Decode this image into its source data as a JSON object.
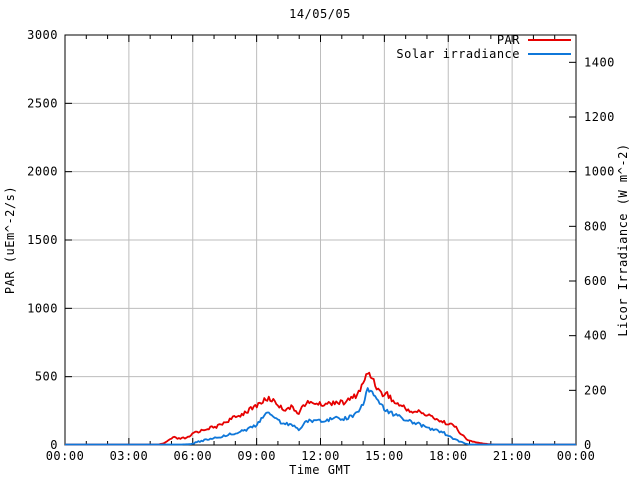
{
  "chart_data": {
    "type": "line",
    "title": "14/05/05",
    "xlabel": "Time GMT",
    "ylabel_left": "PAR (uEm^-2/s)",
    "ylabel_right": "Licor Irradiance (W m^-2)",
    "x_range_hours": [
      0,
      24
    ],
    "x_major_tick_step_hours": 3,
    "x_minor_tick_step_hours": 1,
    "x_tick_labels": [
      "00:00",
      "03:00",
      "06:00",
      "09:00",
      "12:00",
      "15:00",
      "18:00",
      "21:00",
      "00:00"
    ],
    "y_left": {
      "min": 0,
      "max": 3000,
      "tick_step": 500,
      "tick_labels": [
        "0",
        "500",
        "1000",
        "1500",
        "2000",
        "2500",
        "3000"
      ]
    },
    "y_right": {
      "min": 0,
      "max": 1500,
      "tick_step": 200,
      "tick_labels": [
        "0",
        "200",
        "400",
        "600",
        "800",
        "1000",
        "1200",
        "1400"
      ]
    },
    "grid": true,
    "colors": {
      "background": "#ffffff",
      "axis": "#000000",
      "grid": "#bdbdbd",
      "par": "#e60000",
      "solar": "#0f77d9"
    },
    "legend": {
      "position": "top-right-inside",
      "entries": [
        {
          "label": "PAR",
          "color": "#e60000"
        },
        {
          "label": "Solar irradiance",
          "color": "#0f77d9"
        }
      ]
    },
    "series": [
      {
        "name": "PAR",
        "axis": "left",
        "color": "#e60000",
        "units": "uEm^-2/s",
        "points": [
          [
            0,
            3
          ],
          [
            1,
            3
          ],
          [
            2,
            3
          ],
          [
            3,
            3
          ],
          [
            4,
            3
          ],
          [
            4.4,
            4
          ],
          [
            4.7,
            15
          ],
          [
            4.9,
            38
          ],
          [
            5.1,
            55
          ],
          [
            5.3,
            46
          ],
          [
            5.5,
            48
          ],
          [
            5.7,
            52
          ],
          [
            5.9,
            60
          ],
          [
            6.0,
            88
          ],
          [
            6.15,
            96
          ],
          [
            6.3,
            100
          ],
          [
            6.5,
            110
          ],
          [
            6.7,
            122
          ],
          [
            6.85,
            128
          ],
          [
            7.0,
            126
          ],
          [
            7.2,
            140
          ],
          [
            7.4,
            158
          ],
          [
            7.6,
            172
          ],
          [
            7.8,
            192
          ],
          [
            8.0,
            202
          ],
          [
            8.2,
            215
          ],
          [
            8.4,
            235
          ],
          [
            8.6,
            252
          ],
          [
            8.8,
            268
          ],
          [
            9.0,
            290
          ],
          [
            9.2,
            312
          ],
          [
            9.4,
            328
          ],
          [
            9.55,
            340
          ],
          [
            9.7,
            332
          ],
          [
            9.85,
            320
          ],
          [
            10.0,
            298
          ],
          [
            10.15,
            272
          ],
          [
            10.3,
            262
          ],
          [
            10.45,
            270
          ],
          [
            10.6,
            278
          ],
          [
            10.75,
            260
          ],
          [
            10.9,
            244
          ],
          [
            11.0,
            240
          ],
          [
            11.1,
            268
          ],
          [
            11.25,
            298
          ],
          [
            11.4,
            308
          ],
          [
            11.55,
            304
          ],
          [
            11.7,
            312
          ],
          [
            11.85,
            302
          ],
          [
            12.0,
            296
          ],
          [
            12.15,
            300
          ],
          [
            12.3,
            306
          ],
          [
            12.45,
            302
          ],
          [
            12.6,
            314
          ],
          [
            12.75,
            318
          ],
          [
            12.9,
            310
          ],
          [
            13.05,
            308
          ],
          [
            13.2,
            318
          ],
          [
            13.35,
            332
          ],
          [
            13.5,
            345
          ],
          [
            13.65,
            362
          ],
          [
            13.8,
            390
          ],
          [
            13.95,
            430
          ],
          [
            14.05,
            470
          ],
          [
            14.15,
            505
          ],
          [
            14.25,
            530
          ],
          [
            14.35,
            512
          ],
          [
            14.45,
            488
          ],
          [
            14.55,
            455
          ],
          [
            14.65,
            425
          ],
          [
            14.75,
            398
          ],
          [
            14.85,
            375
          ],
          [
            14.95,
            368
          ],
          [
            15.05,
            385
          ],
          [
            15.15,
            375
          ],
          [
            15.25,
            352
          ],
          [
            15.4,
            322
          ],
          [
            15.55,
            302
          ],
          [
            15.7,
            296
          ],
          [
            15.85,
            282
          ],
          [
            16.0,
            265
          ],
          [
            16.15,
            256
          ],
          [
            16.3,
            244
          ],
          [
            16.45,
            238
          ],
          [
            16.6,
            248
          ],
          [
            16.75,
            236
          ],
          [
            16.9,
            224
          ],
          [
            17.05,
            215
          ],
          [
            17.2,
            210
          ],
          [
            17.35,
            202
          ],
          [
            17.5,
            188
          ],
          [
            17.65,
            172
          ],
          [
            17.8,
            166
          ],
          [
            18.0,
            160
          ],
          [
            18.15,
            150
          ],
          [
            18.3,
            136
          ],
          [
            18.45,
            112
          ],
          [
            18.6,
            84
          ],
          [
            18.75,
            56
          ],
          [
            18.9,
            38
          ],
          [
            19.05,
            28
          ],
          [
            19.2,
            22
          ],
          [
            19.4,
            17
          ],
          [
            19.6,
            12
          ],
          [
            19.8,
            8
          ],
          [
            20.0,
            5
          ],
          [
            20.3,
            3
          ],
          [
            20.7,
            2
          ],
          [
            21.5,
            2
          ],
          [
            22.5,
            2
          ],
          [
            23.5,
            2
          ],
          [
            24,
            2
          ]
        ]
      },
      {
        "name": "Solar irradiance",
        "axis": "right",
        "color": "#0f77d9",
        "units": "W m^-2",
        "points": [
          [
            0,
            2
          ],
          [
            1,
            2
          ],
          [
            2,
            2
          ],
          [
            3,
            2
          ],
          [
            4,
            2
          ],
          [
            5,
            2
          ],
          [
            5.5,
            2
          ],
          [
            5.9,
            3
          ],
          [
            6.1,
            8
          ],
          [
            6.3,
            13
          ],
          [
            6.5,
            17
          ],
          [
            6.7,
            21
          ],
          [
            6.9,
            24
          ],
          [
            7.1,
            27
          ],
          [
            7.35,
            31
          ],
          [
            7.6,
            36
          ],
          [
            7.85,
            42
          ],
          [
            8.1,
            46
          ],
          [
            8.35,
            52
          ],
          [
            8.6,
            58
          ],
          [
            8.85,
            66
          ],
          [
            9.05,
            78
          ],
          [
            9.25,
            98
          ],
          [
            9.45,
            112
          ],
          [
            9.6,
            118
          ],
          [
            9.75,
            110
          ],
          [
            9.9,
            98
          ],
          [
            10.05,
            88
          ],
          [
            10.25,
            80
          ],
          [
            10.45,
            76
          ],
          [
            10.65,
            72
          ],
          [
            10.85,
            62
          ],
          [
            11.0,
            58
          ],
          [
            11.15,
            70
          ],
          [
            11.3,
            82
          ],
          [
            11.5,
            88
          ],
          [
            11.7,
            91
          ],
          [
            11.9,
            92
          ],
          [
            12.1,
            90
          ],
          [
            12.3,
            92
          ],
          [
            12.5,
            95
          ],
          [
            12.7,
            98
          ],
          [
            12.9,
            94
          ],
          [
            13.1,
            96
          ],
          [
            13.3,
            101
          ],
          [
            13.5,
            106
          ],
          [
            13.7,
            116
          ],
          [
            13.85,
            130
          ],
          [
            14.0,
            152
          ],
          [
            14.1,
            178
          ],
          [
            14.2,
            198
          ],
          [
            14.3,
            207
          ],
          [
            14.4,
            193
          ],
          [
            14.5,
            186
          ],
          [
            14.6,
            172
          ],
          [
            14.7,
            161
          ],
          [
            14.8,
            148
          ],
          [
            14.9,
            139
          ],
          [
            15.0,
            133
          ],
          [
            15.1,
            128
          ],
          [
            15.25,
            121
          ],
          [
            15.4,
            114
          ],
          [
            15.55,
            108
          ],
          [
            15.7,
            103
          ],
          [
            15.85,
            99
          ],
          [
            16.0,
            93
          ],
          [
            16.2,
            86
          ],
          [
            16.4,
            81
          ],
          [
            16.6,
            78
          ],
          [
            16.8,
            70
          ],
          [
            17.0,
            63
          ],
          [
            17.2,
            58
          ],
          [
            17.4,
            55
          ],
          [
            17.6,
            50
          ],
          [
            17.8,
            44
          ],
          [
            18.0,
            33
          ],
          [
            18.2,
            25
          ],
          [
            18.4,
            17
          ],
          [
            18.6,
            10
          ],
          [
            18.8,
            5
          ],
          [
            19.0,
            2
          ],
          [
            19.3,
            1
          ],
          [
            20,
            1
          ],
          [
            21,
            1
          ],
          [
            22,
            1
          ],
          [
            23,
            1
          ],
          [
            24,
            1
          ]
        ]
      }
    ]
  }
}
